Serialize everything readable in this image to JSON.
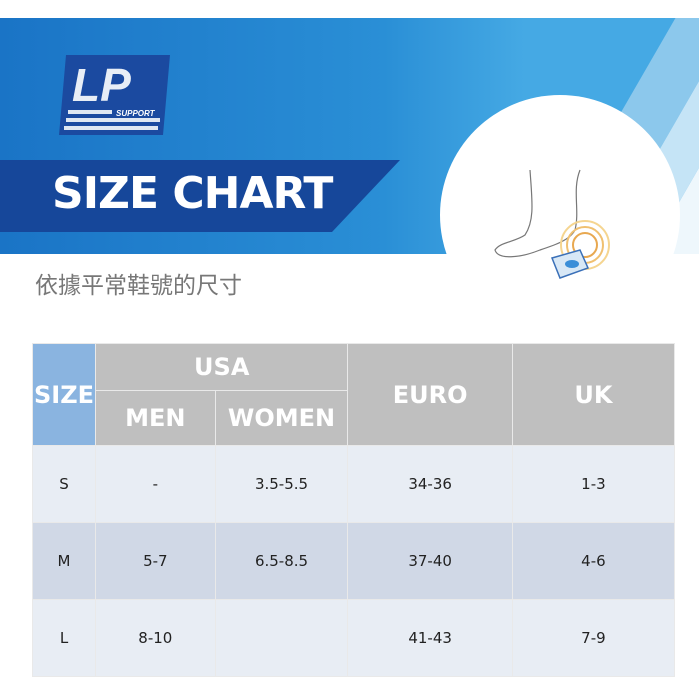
{
  "logo": {
    "text": "LP",
    "subtext": "SUPPORT"
  },
  "title": "SIZE CHART",
  "subtitle": "依據平常鞋號的尺寸",
  "table": {
    "headers": {
      "size": "SIZE",
      "usa": "USA",
      "men": "MEN",
      "women": "WOMEN",
      "euro": "EURO",
      "uk": "UK"
    },
    "rows": [
      {
        "size": "S",
        "men": "-",
        "women": "3.5-5.5",
        "euro": "34-36",
        "uk": "1-3"
      },
      {
        "size": "M",
        "men": "5-7",
        "women": "6.5-8.5",
        "euro": "37-40",
        "uk": "4-6"
      },
      {
        "size": "L",
        "men": "8-10",
        "women": "",
        "euro": "41-43",
        "uk": "7-9"
      }
    ]
  }
}
